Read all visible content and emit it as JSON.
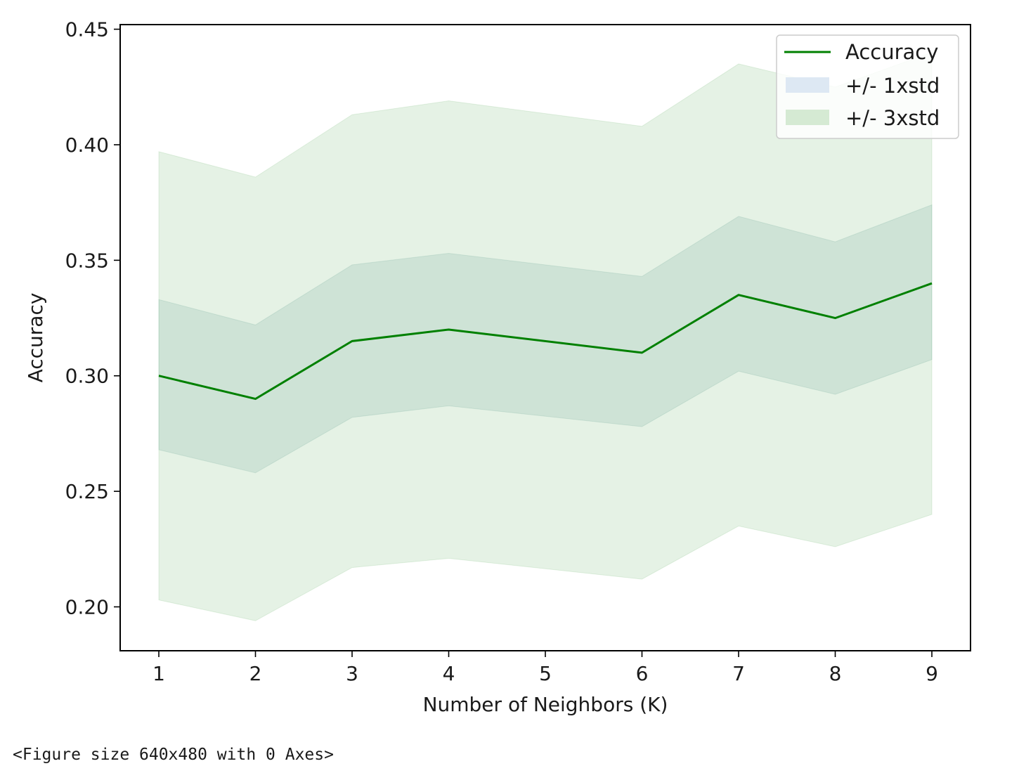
{
  "chart_data": {
    "type": "line",
    "title": "",
    "xlabel": "Number of Neighbors (K)",
    "ylabel": "Accuracy",
    "x": [
      1,
      2,
      3,
      4,
      6,
      7,
      8,
      9
    ],
    "xticks": [
      "1",
      "2",
      "3",
      "4",
      "5",
      "6",
      "7",
      "8",
      "9"
    ],
    "xlim": [
      0.6,
      9.4
    ],
    "yticks": [
      "0.20",
      "0.25",
      "0.30",
      "0.35",
      "0.40",
      "0.45"
    ],
    "ylim": [
      0.181,
      0.452
    ],
    "grid": false,
    "legend_position": "top-right",
    "series": [
      {
        "name": "Accuracy",
        "kind": "line",
        "color": "#008000",
        "values": [
          0.3,
          0.29,
          0.315,
          0.32,
          0.31,
          0.335,
          0.325,
          0.34
        ]
      },
      {
        "name": "+/- 1xstd",
        "kind": "band",
        "color": "#c7d8ec",
        "lower": [
          0.268,
          0.258,
          0.282,
          0.287,
          0.278,
          0.302,
          0.292,
          0.307
        ],
        "upper": [
          0.333,
          0.322,
          0.348,
          0.353,
          0.343,
          0.369,
          0.358,
          0.374
        ]
      },
      {
        "name": "+/- 3xstd",
        "kind": "band",
        "color": "#a8d4a8",
        "lower": [
          0.203,
          0.194,
          0.217,
          0.221,
          0.212,
          0.235,
          0.226,
          0.24
        ],
        "upper": [
          0.397,
          0.386,
          0.413,
          0.419,
          0.408,
          0.435,
          0.425,
          0.44
        ]
      }
    ]
  },
  "caption": "<Figure size 640x480 with 0 Axes>"
}
